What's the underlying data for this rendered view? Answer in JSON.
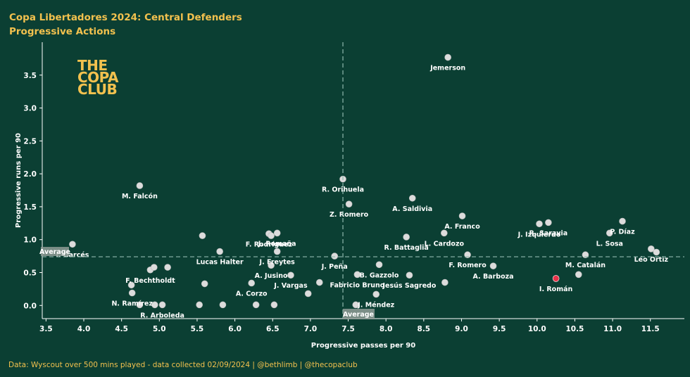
{
  "header": {
    "title": "Copa Libertadores 2024: Central Defenders",
    "subtitle": "Progressive Actions"
  },
  "logo": {
    "line1": "THE",
    "line2": "COPA",
    "line3": "CLUB"
  },
  "footer": "Data: Wyscout over 500 mins played - data collected 02/09/2024 | @bethlimb | @thecopaclub",
  "colors": {
    "background": "#0b3f33",
    "title": "#f2c14e",
    "point": "#dcdcdc",
    "highlight": "#e8334a",
    "average_line": "#8fb8ad",
    "average_box": "#8f9c97"
  },
  "chart_data": {
    "type": "scatter",
    "xlabel": "Progressive passes per 90",
    "ylabel": "Progressive runs per 90",
    "xlim": [
      3.45,
      11.95
    ],
    "ylim": [
      -0.2,
      4.0
    ],
    "xticks": [
      "3.5",
      "4.0",
      "4.5",
      "5.0",
      "5.5",
      "6.0",
      "6.5",
      "7.0",
      "7.5",
      "8.0",
      "8.5",
      "9.0",
      "9.5",
      "10.0",
      "10.5",
      "11.0",
      "11.5"
    ],
    "yticks": [
      "0.0",
      "0.5",
      "1.0",
      "1.5",
      "2.0",
      "2.5",
      "3.0",
      "3.5"
    ],
    "grid": false,
    "average": {
      "x": 7.43,
      "y": 0.74,
      "x_label": "Average",
      "y_label": "Average"
    },
    "points": [
      {
        "name": "Jemerson",
        "x": 8.82,
        "y": 3.77
      },
      {
        "name": "M. Falcón",
        "x": 4.74,
        "y": 1.82
      },
      {
        "name": "R. Orihuela",
        "x": 7.43,
        "y": 1.92
      },
      {
        "name": "Z. Romero",
        "x": 7.51,
        "y": 1.54
      },
      {
        "name": "A. Saldivia",
        "x": 8.35,
        "y": 1.63
      },
      {
        "name": "A. Franco",
        "x": 9.01,
        "y": 1.36
      },
      {
        "name": "R. Saravia",
        "x": 10.15,
        "y": 1.26
      },
      {
        "name": "J. Izquierdo",
        "x": 10.03,
        "y": 1.24
      },
      {
        "name": "P. Díaz",
        "x": 11.13,
        "y": 1.28
      },
      {
        "name": "L. Sosa",
        "x": 10.96,
        "y": 1.1
      },
      {
        "name": "Léo Ortiz",
        "x": 11.51,
        "y": 0.86
      },
      {
        "name": "",
        "x": 11.58,
        "y": 0.81
      },
      {
        "name": "M. Catalán",
        "x": 10.64,
        "y": 0.77
      },
      {
        "name": "",
        "x": 10.55,
        "y": 0.47
      },
      {
        "name": "I. Román",
        "x": 10.25,
        "y": 0.41,
        "highlight": true
      },
      {
        "name": "A. Barboza",
        "x": 9.42,
        "y": 0.6
      },
      {
        "name": "F. Romero",
        "x": 9.08,
        "y": 0.77
      },
      {
        "name": "L. Cardozo",
        "x": 8.77,
        "y": 1.1
      },
      {
        "name": "R. Battaglia",
        "x": 8.27,
        "y": 1.04
      },
      {
        "name": "B. Gazzolo",
        "x": 7.91,
        "y": 0.62
      },
      {
        "name": "Jesús Sagredo",
        "x": 8.31,
        "y": 0.46
      },
      {
        "name": "",
        "x": 8.78,
        "y": 0.35
      },
      {
        "name": "Fabricio Bruno",
        "x": 7.62,
        "y": 0.47
      },
      {
        "name": "J. Méndez",
        "x": 7.87,
        "y": 0.17
      },
      {
        "name": "",
        "x": 7.6,
        "y": 0.01
      },
      {
        "name": "J. Peña",
        "x": 7.32,
        "y": 0.75
      },
      {
        "name": "",
        "x": 7.12,
        "y": 0.35
      },
      {
        "name": "",
        "x": 6.97,
        "y": 0.18
      },
      {
        "name": "J. Vargas",
        "x": 6.74,
        "y": 0.46
      },
      {
        "name": "F. Rodríguez",
        "x": 6.45,
        "y": 1.09
      },
      {
        "name": "",
        "x": 6.48,
        "y": 1.06
      },
      {
        "name": "J. Romaña",
        "x": 6.56,
        "y": 1.1
      },
      {
        "name": "J. Freytes",
        "x": 6.56,
        "y": 0.82
      },
      {
        "name": "A. Jusino",
        "x": 6.48,
        "y": 0.61
      },
      {
        "name": "A. Corzo",
        "x": 6.22,
        "y": 0.34
      },
      {
        "name": "",
        "x": 6.28,
        "y": 0.01
      },
      {
        "name": "",
        "x": 6.52,
        "y": 0.01
      },
      {
        "name": "Lucas Halter",
        "x": 5.8,
        "y": 0.82
      },
      {
        "name": "",
        "x": 5.57,
        "y": 1.06
      },
      {
        "name": "",
        "x": 5.6,
        "y": 0.33
      },
      {
        "name": "",
        "x": 5.53,
        "y": 0.01
      },
      {
        "name": "",
        "x": 5.84,
        "y": 0.01
      },
      {
        "name": "R. Arboleda",
        "x": 5.04,
        "y": 0.01
      },
      {
        "name": "",
        "x": 4.94,
        "y": 0.01
      },
      {
        "name": "",
        "x": 4.74,
        "y": 0.01
      },
      {
        "name": "N. Ramírez",
        "x": 4.64,
        "y": 0.19
      },
      {
        "name": "",
        "x": 4.63,
        "y": 0.31
      },
      {
        "name": "F. Bechtholdt",
        "x": 4.88,
        "y": 0.54
      },
      {
        "name": "",
        "x": 4.93,
        "y": 0.58
      },
      {
        "name": "",
        "x": 5.11,
        "y": 0.58
      },
      {
        "name": "I. Garcés",
        "x": 3.85,
        "y": 0.93
      }
    ]
  }
}
